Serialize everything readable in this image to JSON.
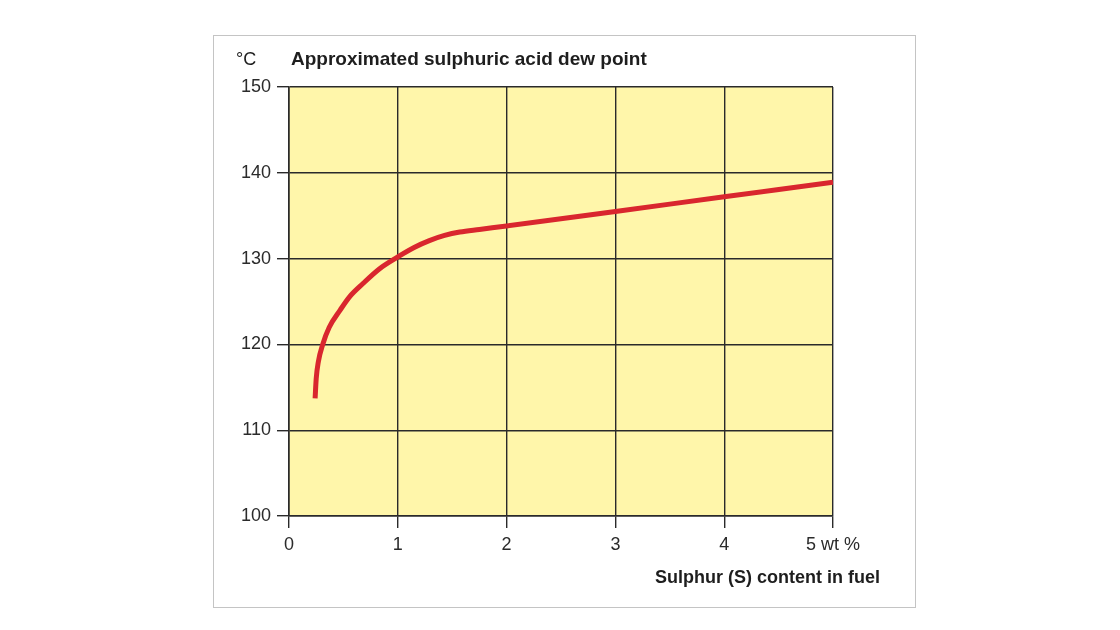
{
  "chart_data": {
    "type": "line",
    "title": "Approximated sulphuric acid dew point",
    "ylabel": "°C",
    "xlabel": "Sulphur (S) content in fuel",
    "x": [
      0.24,
      0.25,
      0.27,
      0.31,
      0.37,
      0.47,
      0.56,
      0.68,
      0.83,
      1,
      1.15,
      1.29,
      1.43,
      1.57,
      1.75,
      2,
      3,
      4,
      5
    ],
    "series": [
      {
        "color": "#d9262e",
        "values": [
          113.7,
          116,
          118,
          120,
          122,
          124,
          125.6,
          127.1,
          128.8,
          130.2,
          131.3,
          132.1,
          132.7,
          133.1,
          133.4,
          133.8,
          135.5,
          137.2,
          138.9
        ]
      }
    ],
    "xlim": [
      0,
      5
    ],
    "xticks": [
      0,
      1,
      2,
      3,
      4,
      {
        "value": 5,
        "label": "5 wt %"
      }
    ],
    "ylim": [
      100,
      150
    ],
    "yticks": [
      100,
      110,
      120,
      130,
      140,
      150
    ],
    "grid": true,
    "marker": "none",
    "line_style": "solid"
  }
}
